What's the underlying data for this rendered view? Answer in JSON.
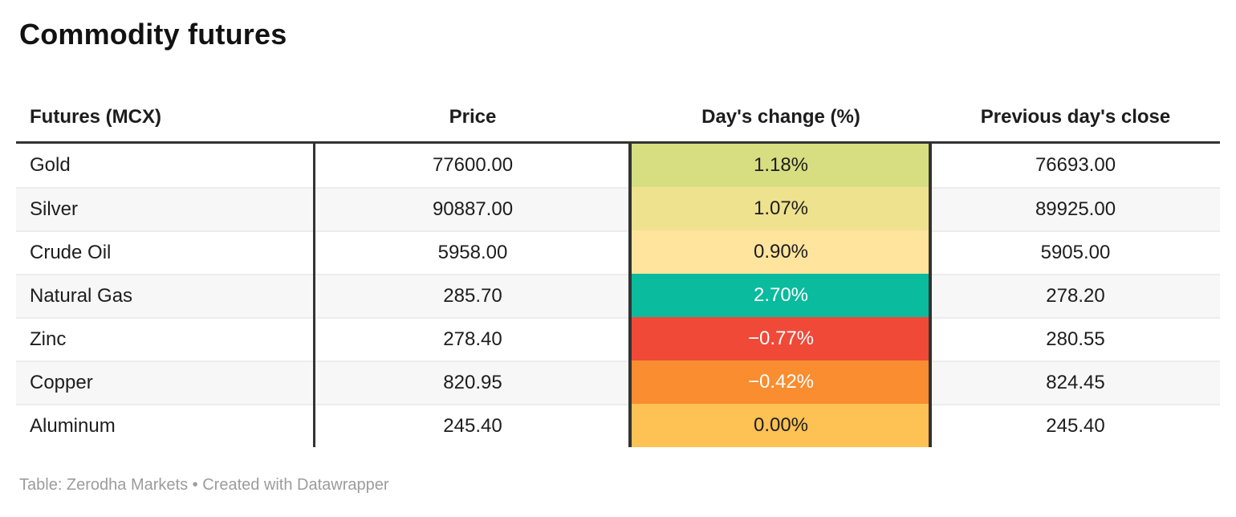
{
  "title": "Commodity futures",
  "footer": "Table: Zerodha Markets • Created with Datawrapper",
  "table": {
    "columns": [
      "Futures (MCX)",
      "Price",
      "Day's change (%)",
      "Previous day's close"
    ],
    "rows": [
      {
        "name": "Gold",
        "price": "77600.00",
        "change": "1.18%",
        "prev": "76693.00",
        "change_bg": "#d7de81",
        "change_fg": "#1d1d1d"
      },
      {
        "name": "Silver",
        "price": "90887.00",
        "change": "1.07%",
        "prev": "89925.00",
        "change_bg": "#eee28e",
        "change_fg": "#1d1d1d"
      },
      {
        "name": "Crude Oil",
        "price": "5958.00",
        "change": "0.90%",
        "prev": "5905.00",
        "change_bg": "#ffe49d",
        "change_fg": "#1d1d1d"
      },
      {
        "name": "Natural Gas",
        "price": "285.70",
        "change": "2.70%",
        "prev": "278.20",
        "change_bg": "#0abb9d",
        "change_fg": "#ffffff"
      },
      {
        "name": "Zinc",
        "price": "278.40",
        "change": "−0.77%",
        "prev": "280.55",
        "change_bg": "#f04938",
        "change_fg": "#ffffff"
      },
      {
        "name": "Copper",
        "price": "820.95",
        "change": "−0.42%",
        "prev": "824.45",
        "change_bg": "#f98d2f",
        "change_fg": "#ffffff"
      },
      {
        "name": "Aluminum",
        "price": "245.40",
        "change": "0.00%",
        "prev": "245.40",
        "change_bg": "#fdc154",
        "change_fg": "#1d1d1d"
      }
    ]
  },
  "colors": {
    "header_rule": "#333333",
    "zebra_row": "#f7f7f7",
    "row_separator": "#ececec",
    "footer_text": "#9c9c9c",
    "positive_high": "#0abb9d",
    "negative": "#f04938"
  },
  "chart_data": {
    "type": "table",
    "title": "Commodity futures",
    "columns": [
      "Futures (MCX)",
      "Price",
      "Day's change (%)",
      "Previous day's close"
    ],
    "rows": [
      [
        "Gold",
        77600.0,
        1.18,
        76693.0
      ],
      [
        "Silver",
        90887.0,
        1.07,
        89925.0
      ],
      [
        "Crude Oil",
        5958.0,
        0.9,
        5905.0
      ],
      [
        "Natural Gas",
        285.7,
        2.7,
        278.2
      ],
      [
        "Zinc",
        278.4,
        -0.77,
        280.55
      ],
      [
        "Copper",
        820.95,
        -0.42,
        824.45
      ],
      [
        "Aluminum",
        245.4,
        0.0,
        245.4
      ]
    ],
    "layout_hints": {
      "heatmap_column": "Day's change (%)",
      "heatmap_scale": "red (negative) to yellow to green (positive)",
      "zebra_striping": true,
      "alignment": [
        "left",
        "center",
        "center",
        "center"
      ]
    }
  }
}
